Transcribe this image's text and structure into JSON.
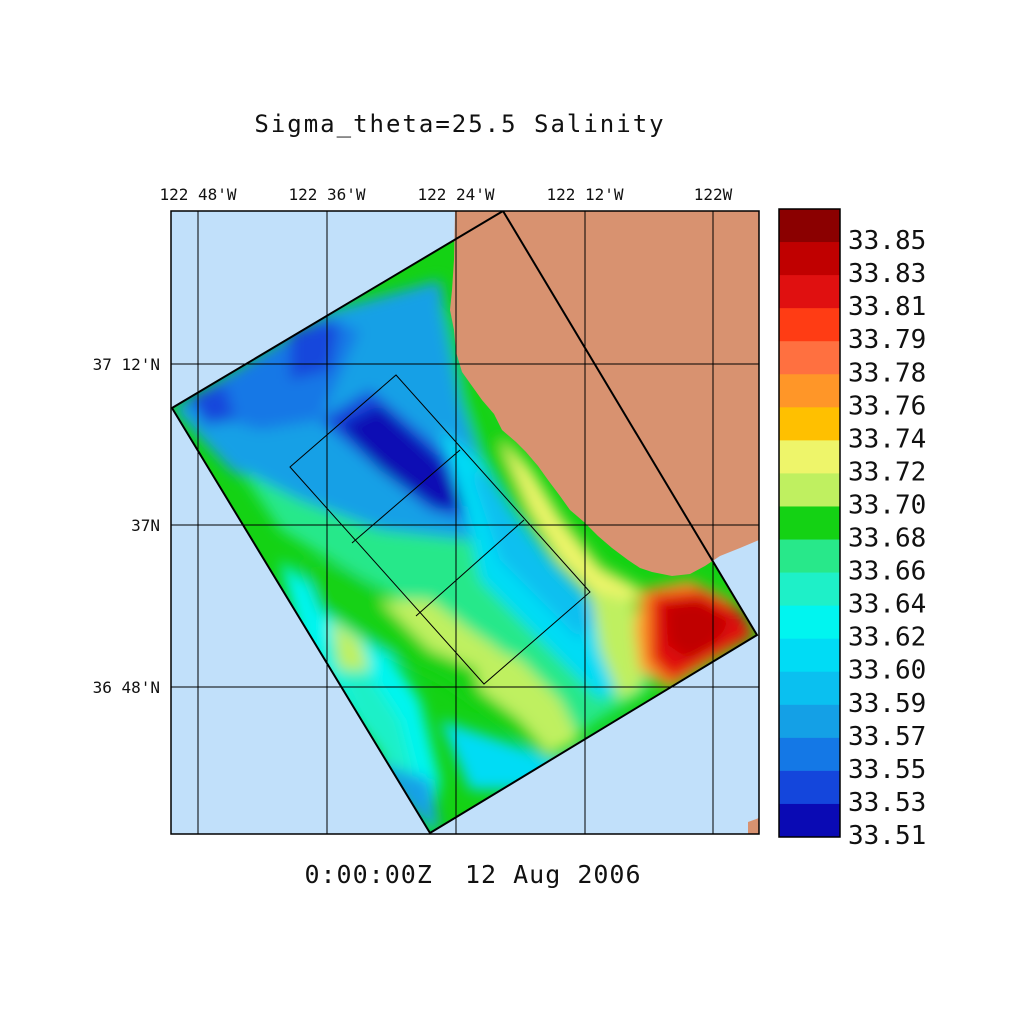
{
  "title": "Sigma_theta=25.5 Salinity",
  "timestamp": "0:00:00Z  12 Aug 2006",
  "longitude_labels": [
    "122 48'W",
    "122 36'W",
    "122 24'W",
    "122 12'W",
    "122W"
  ],
  "latitude_labels": [
    "37 12'N",
    "37N",
    "36 48'N"
  ],
  "colorbar": {
    "labels": [
      "33.85",
      "33.83",
      "33.81",
      "33.79",
      "33.78",
      "33.76",
      "33.74",
      "33.72",
      "33.70",
      "33.68",
      "33.66",
      "33.64",
      "33.62",
      "33.60",
      "33.59",
      "33.57",
      "33.55",
      "33.53",
      "33.51"
    ],
    "colors": [
      "#8b0000",
      "#c00000",
      "#e01010",
      "#ff3c14",
      "#ff7040",
      "#ff9628",
      "#ffc000",
      "#eef56a",
      "#bff060",
      "#14d214",
      "#28e88a",
      "#1ef0c8",
      "#00f5f0",
      "#00dcf5",
      "#0ac0f0",
      "#14a0e6",
      "#1478e6",
      "#1446dc",
      "#0a0ab4"
    ]
  },
  "colors": {
    "ocean": "#c1e0fa",
    "land": "#d89270",
    "frame": "#000000"
  }
}
